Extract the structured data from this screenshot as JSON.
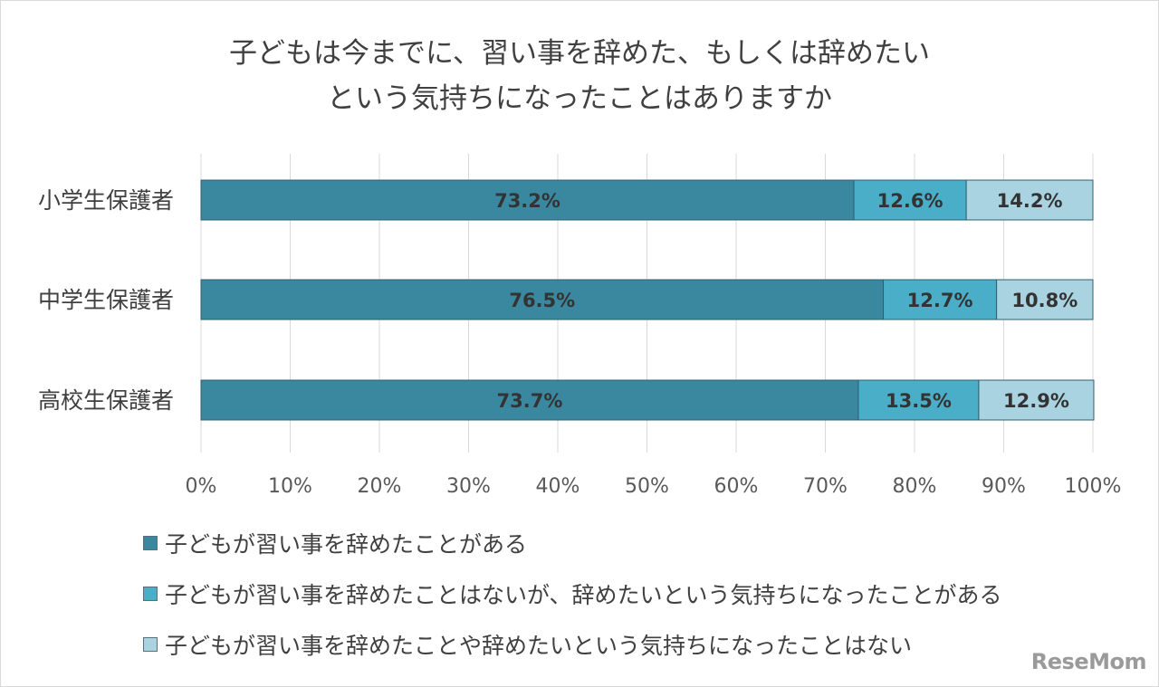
{
  "chart_data": {
    "type": "bar",
    "orientation": "horizontal",
    "stacked": "percent",
    "title": "子どもは今までに、習い事を辞めた、もしくは辞めたいという気持ちになったことはありますか",
    "title_lines": [
      "子どもは今までに、習い事を辞めた、もしくは辞めたい",
      "という気持ちになったことはありますか"
    ],
    "categories": [
      "小学生保護者",
      "中学生保護者",
      "高校生保護者"
    ],
    "series": [
      {
        "name": "子どもが習い事を辞めたことがある",
        "color": "#3a889f",
        "values": [
          73.2,
          76.5,
          73.7
        ],
        "labels": [
          "73.2%",
          "76.5%",
          "73.7%"
        ]
      },
      {
        "name": "子どもが習い事を辞めたことはないが、辞めたいという気持ちになったことがある",
        "color": "#4aaec8",
        "values": [
          12.6,
          12.7,
          13.5
        ],
        "labels": [
          "12.6%",
          "12.7%",
          "13.5%"
        ]
      },
      {
        "name": "子どもが習い事を辞めたことや辞めたいという気持ちになったことはない",
        "color": "#a9d3e0",
        "values": [
          14.2,
          10.8,
          12.9
        ],
        "labels": [
          "14.2%",
          "10.8%",
          "12.9%"
        ]
      }
    ],
    "xlim": [
      0,
      100
    ],
    "x_ticks": [
      "0%",
      "10%",
      "20%",
      "30%",
      "40%",
      "50%",
      "60%",
      "70%",
      "80%",
      "90%",
      "100%"
    ],
    "grid": true,
    "legend_position": "bottom-left"
  },
  "watermark": "ReseMom"
}
